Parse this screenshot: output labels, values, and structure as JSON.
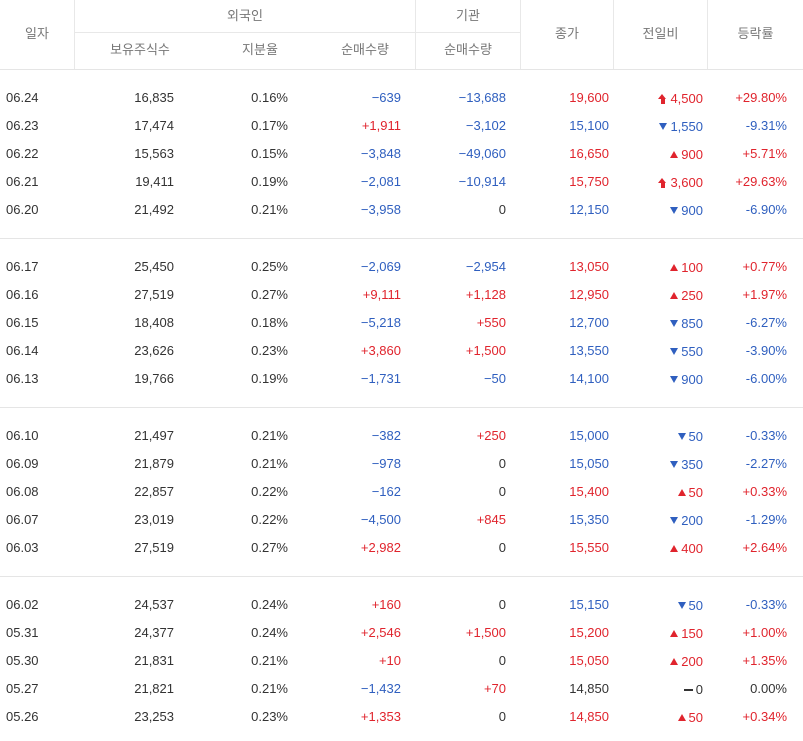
{
  "header": {
    "date": "일자",
    "foreign": "외국인",
    "institution": "기관",
    "held_shares": "보유주식수",
    "share_ratio": "지분율",
    "foreign_net": "순매수량",
    "inst_net": "순매수량",
    "close": "종가",
    "change": "전일비",
    "rate": "등락률"
  },
  "colors": {
    "up": "#e0242d",
    "down": "#2f5fbf",
    "neutral": "#333333",
    "header_text": "#777777",
    "border": "#e5e5e5"
  },
  "rows": [
    {
      "date": "06.24",
      "held": "16,835",
      "ratio": "0.16%",
      "foreign_net": "−639",
      "inst_net": "−13,688",
      "close": "19,600",
      "change": "4,500",
      "change_icon": "upper-limit-icon",
      "rate": "+29.80%",
      "dir": "up"
    },
    {
      "date": "06.23",
      "held": "17,474",
      "ratio": "0.17%",
      "foreign_net": "+1,911",
      "inst_net": "−3,102",
      "close": "15,100",
      "change": "1,550",
      "change_icon": "down-icon",
      "rate": "-9.31%",
      "dir": "down"
    },
    {
      "date": "06.22",
      "held": "15,563",
      "ratio": "0.15%",
      "foreign_net": "−3,848",
      "inst_net": "−49,060",
      "close": "16,650",
      "change": "900",
      "change_icon": "up-icon",
      "rate": "+5.71%",
      "dir": "up"
    },
    {
      "date": "06.21",
      "held": "19,411",
      "ratio": "0.19%",
      "foreign_net": "−2,081",
      "inst_net": "−10,914",
      "close": "15,750",
      "change": "3,600",
      "change_icon": "upper-limit-icon",
      "rate": "+29.63%",
      "dir": "up"
    },
    {
      "date": "06.20",
      "held": "21,492",
      "ratio": "0.21%",
      "foreign_net": "−3,958",
      "inst_net": "0",
      "close": "12,150",
      "change": "900",
      "change_icon": "down-icon",
      "rate": "-6.90%",
      "dir": "down"
    },
    {
      "date": "06.17",
      "held": "25,450",
      "ratio": "0.25%",
      "foreign_net": "−2,069",
      "inst_net": "−2,954",
      "close": "13,050",
      "change": "100",
      "change_icon": "up-icon",
      "rate": "+0.77%",
      "dir": "up"
    },
    {
      "date": "06.16",
      "held": "27,519",
      "ratio": "0.27%",
      "foreign_net": "+9,111",
      "inst_net": "+1,128",
      "close": "12,950",
      "change": "250",
      "change_icon": "up-icon",
      "rate": "+1.97%",
      "dir": "up"
    },
    {
      "date": "06.15",
      "held": "18,408",
      "ratio": "0.18%",
      "foreign_net": "−5,218",
      "inst_net": "+550",
      "close": "12,700",
      "change": "850",
      "change_icon": "down-icon",
      "rate": "-6.27%",
      "dir": "down"
    },
    {
      "date": "06.14",
      "held": "23,626",
      "ratio": "0.23%",
      "foreign_net": "+3,860",
      "inst_net": "+1,500",
      "close": "13,550",
      "change": "550",
      "change_icon": "down-icon",
      "rate": "-3.90%",
      "dir": "down"
    },
    {
      "date": "06.13",
      "held": "19,766",
      "ratio": "0.19%",
      "foreign_net": "−1,731",
      "inst_net": "−50",
      "close": "14,100",
      "change": "900",
      "change_icon": "down-icon",
      "rate": "-6.00%",
      "dir": "down"
    },
    {
      "date": "06.10",
      "held": "21,497",
      "ratio": "0.21%",
      "foreign_net": "−382",
      "inst_net": "+250",
      "close": "15,000",
      "change": "50",
      "change_icon": "down-icon",
      "rate": "-0.33%",
      "dir": "down"
    },
    {
      "date": "06.09",
      "held": "21,879",
      "ratio": "0.21%",
      "foreign_net": "−978",
      "inst_net": "0",
      "close": "15,050",
      "change": "350",
      "change_icon": "down-icon",
      "rate": "-2.27%",
      "dir": "down"
    },
    {
      "date": "06.08",
      "held": "22,857",
      "ratio": "0.22%",
      "foreign_net": "−162",
      "inst_net": "0",
      "close": "15,400",
      "change": "50",
      "change_icon": "up-icon",
      "rate": "+0.33%",
      "dir": "up"
    },
    {
      "date": "06.07",
      "held": "23,019",
      "ratio": "0.22%",
      "foreign_net": "−4,500",
      "inst_net": "+845",
      "close": "15,350",
      "change": "200",
      "change_icon": "down-icon",
      "rate": "-1.29%",
      "dir": "down"
    },
    {
      "date": "06.03",
      "held": "27,519",
      "ratio": "0.27%",
      "foreign_net": "+2,982",
      "inst_net": "0",
      "close": "15,550",
      "change": "400",
      "change_icon": "up-icon",
      "rate": "+2.64%",
      "dir": "up"
    },
    {
      "date": "06.02",
      "held": "24,537",
      "ratio": "0.24%",
      "foreign_net": "+160",
      "inst_net": "0",
      "close": "15,150",
      "change": "50",
      "change_icon": "down-icon",
      "rate": "-0.33%",
      "dir": "down"
    },
    {
      "date": "05.31",
      "held": "24,377",
      "ratio": "0.24%",
      "foreign_net": "+2,546",
      "inst_net": "+1,500",
      "close": "15,200",
      "change": "150",
      "change_icon": "up-icon",
      "rate": "+1.00%",
      "dir": "up"
    },
    {
      "date": "05.30",
      "held": "21,831",
      "ratio": "0.21%",
      "foreign_net": "+10",
      "inst_net": "0",
      "close": "15,050",
      "change": "200",
      "change_icon": "up-icon",
      "rate": "+1.35%",
      "dir": "up"
    },
    {
      "date": "05.27",
      "held": "21,821",
      "ratio": "0.21%",
      "foreign_net": "−1,432",
      "inst_net": "+70",
      "close": "14,850",
      "change": "0",
      "change_icon": "flat-icon",
      "rate": "0.00%",
      "dir": "flat"
    },
    {
      "date": "05.26",
      "held": "23,253",
      "ratio": "0.23%",
      "foreign_net": "+1,353",
      "inst_net": "0",
      "close": "14,850",
      "change": "50",
      "change_icon": "up-icon",
      "rate": "+0.34%",
      "dir": "up"
    }
  ]
}
